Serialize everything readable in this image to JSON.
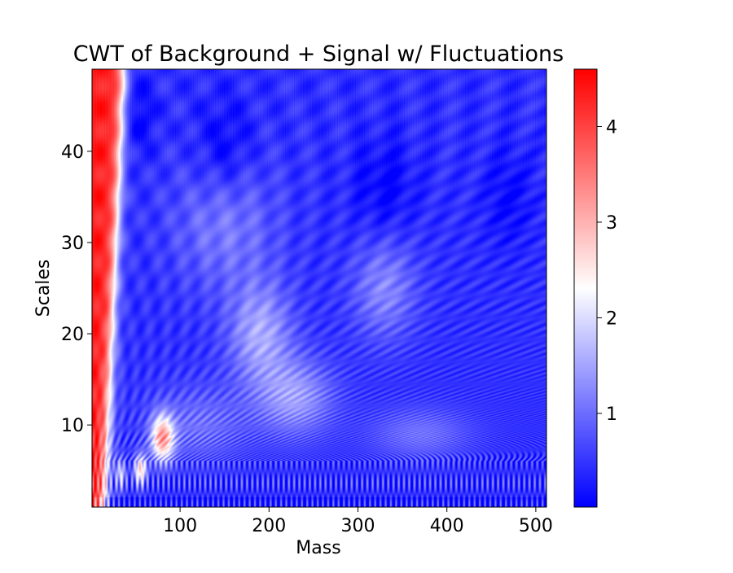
{
  "chart_data": {
    "type": "heatmap",
    "title": "CWT of Background + Signal w/ Fluctuations",
    "xlabel": "Mass",
    "ylabel": "Scales",
    "xlim": [
      1,
      512
    ],
    "ylim": [
      1,
      49
    ],
    "xticks": [
      {
        "value": 100,
        "label": "100"
      },
      {
        "value": 200,
        "label": "200"
      },
      {
        "value": 300,
        "label": "300"
      },
      {
        "value": 400,
        "label": "400"
      },
      {
        "value": 500,
        "label": "500"
      }
    ],
    "yticks": [
      {
        "value": 10,
        "label": "10"
      },
      {
        "value": 20,
        "label": "20"
      },
      {
        "value": 30,
        "label": "30"
      },
      {
        "value": 40,
        "label": "40"
      }
    ],
    "colormap": "bwr",
    "colormap_colors": [
      "#0000ff",
      "#ffffff",
      "#ff0000"
    ],
    "colorbar": {
      "range": [
        0.02,
        4.6
      ],
      "ticks": [
        {
          "value": 1,
          "label": "1"
        },
        {
          "value": 2,
          "label": "2"
        },
        {
          "value": 3,
          "label": "3"
        },
        {
          "value": 4,
          "label": "4"
        }
      ]
    },
    "features": [
      {
        "mass": [
          1,
          40
        ],
        "scales": [
          1,
          49
        ],
        "level": 4.2,
        "description": "red band along low mass, all scales"
      },
      {
        "mass": [
          55,
          95
        ],
        "scales": [
          4,
          11
        ],
        "level": 3.8,
        "description": "red blobs at low scales"
      },
      {
        "mass": [
          150,
          300
        ],
        "scales": [
          8,
          25
        ],
        "level": 2.0,
        "description": "light regions at mid scales"
      },
      {
        "mass": [
          300,
          380
        ],
        "scales": [
          22,
          30
        ],
        "level": 1.6,
        "description": "light patch"
      },
      {
        "mass": [
          1,
          512
        ],
        "scales": [
          1,
          7
        ],
        "level": 1.4,
        "description": "oscillating ripple band at lowest scales"
      },
      {
        "mass": [
          350,
          512
        ],
        "scales": [
          10,
          49
        ],
        "level": 0.3,
        "description": "mostly deep blue"
      }
    ]
  }
}
